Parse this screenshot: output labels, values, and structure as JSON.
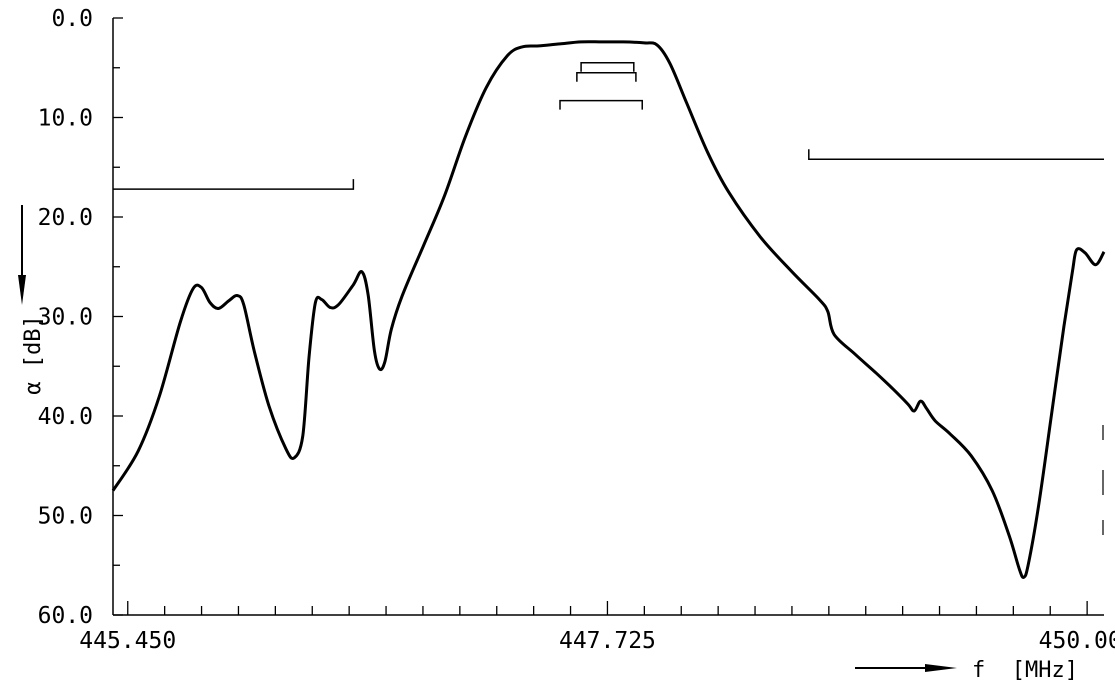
{
  "chart_data": {
    "type": "line",
    "title": "",
    "xlabel": "f  [MHz]",
    "ylabel": "α  [dB]",
    "x_ticks": [
      "445.450",
      "447.725",
      "450.000"
    ],
    "y_ticks": [
      "0.0",
      "10.0",
      "20.0",
      "30.0",
      "40.0",
      "50.0",
      "60.0"
    ],
    "xlim": [
      445.38,
      450.08
    ],
    "ylim": [
      0,
      60
    ],
    "y_inverted": true,
    "grid": false,
    "series": [
      {
        "values": [
          [
            445.38,
            47.5
          ],
          [
            445.5,
            43.5
          ],
          [
            445.6,
            38.0
          ],
          [
            445.7,
            30.5
          ],
          [
            445.76,
            27.2
          ],
          [
            445.8,
            27.1
          ],
          [
            445.84,
            28.6
          ],
          [
            445.88,
            29.2
          ],
          [
            445.93,
            28.4
          ],
          [
            445.97,
            27.9
          ],
          [
            446.0,
            28.8
          ],
          [
            446.05,
            33.5
          ],
          [
            446.12,
            39.0
          ],
          [
            446.2,
            43.3
          ],
          [
            446.24,
            44.2
          ],
          [
            446.28,
            42.0
          ],
          [
            446.31,
            34.0
          ],
          [
            446.34,
            28.6
          ],
          [
            446.37,
            28.3
          ],
          [
            446.41,
            29.1
          ],
          [
            446.45,
            28.8
          ],
          [
            446.52,
            26.8
          ],
          [
            446.56,
            25.5
          ],
          [
            446.59,
            27.8
          ],
          [
            446.62,
            33.5
          ],
          [
            446.645,
            35.3
          ],
          [
            446.67,
            34.5
          ],
          [
            446.7,
            31.3
          ],
          [
            446.75,
            28.0
          ],
          [
            446.85,
            23.0
          ],
          [
            446.95,
            18.0
          ],
          [
            447.05,
            12.0
          ],
          [
            447.15,
            7.0
          ],
          [
            447.25,
            3.8
          ],
          [
            447.32,
            2.9
          ],
          [
            447.4,
            2.8
          ],
          [
            447.5,
            2.6
          ],
          [
            447.6,
            2.4
          ],
          [
            447.7,
            2.4
          ],
          [
            447.8,
            2.4
          ],
          [
            447.9,
            2.5
          ],
          [
            447.96,
            2.7
          ],
          [
            448.02,
            4.5
          ],
          [
            448.1,
            8.5
          ],
          [
            448.2,
            13.5
          ],
          [
            448.3,
            17.5
          ],
          [
            448.45,
            22.0
          ],
          [
            448.6,
            25.5
          ],
          [
            448.73,
            28.3
          ],
          [
            448.77,
            29.5
          ],
          [
            448.8,
            31.8
          ],
          [
            448.9,
            33.8
          ],
          [
            449.0,
            35.7
          ],
          [
            449.08,
            37.3
          ],
          [
            449.15,
            38.8
          ],
          [
            449.18,
            39.5
          ],
          [
            449.21,
            38.5
          ],
          [
            449.24,
            39.3
          ],
          [
            449.28,
            40.5
          ],
          [
            449.35,
            41.8
          ],
          [
            449.45,
            44.0
          ],
          [
            449.55,
            47.5
          ],
          [
            449.63,
            52.0
          ],
          [
            449.68,
            55.5
          ],
          [
            449.7,
            56.2
          ],
          [
            449.72,
            55.0
          ],
          [
            449.77,
            49.0
          ],
          [
            449.83,
            40.0
          ],
          [
            449.89,
            31.0
          ],
          [
            449.93,
            25.5
          ],
          [
            449.95,
            23.3
          ],
          [
            449.99,
            23.6
          ],
          [
            450.04,
            24.8
          ],
          [
            450.08,
            23.5
          ]
        ]
      }
    ],
    "annotations": {
      "passband_brackets": [
        {
          "x": [
            447.6,
            447.85
          ],
          "y": 4.5
        },
        {
          "x": [
            447.58,
            447.86
          ],
          "y": 5.5
        },
        {
          "x": [
            447.5,
            447.89
          ],
          "y": 8.3
        }
      ],
      "stopband_limits": [
        {
          "x": [
            445.38,
            446.52
          ],
          "y": 17.2
        },
        {
          "x": [
            448.68,
            450.08
          ],
          "y": 14.2
        }
      ]
    }
  }
}
